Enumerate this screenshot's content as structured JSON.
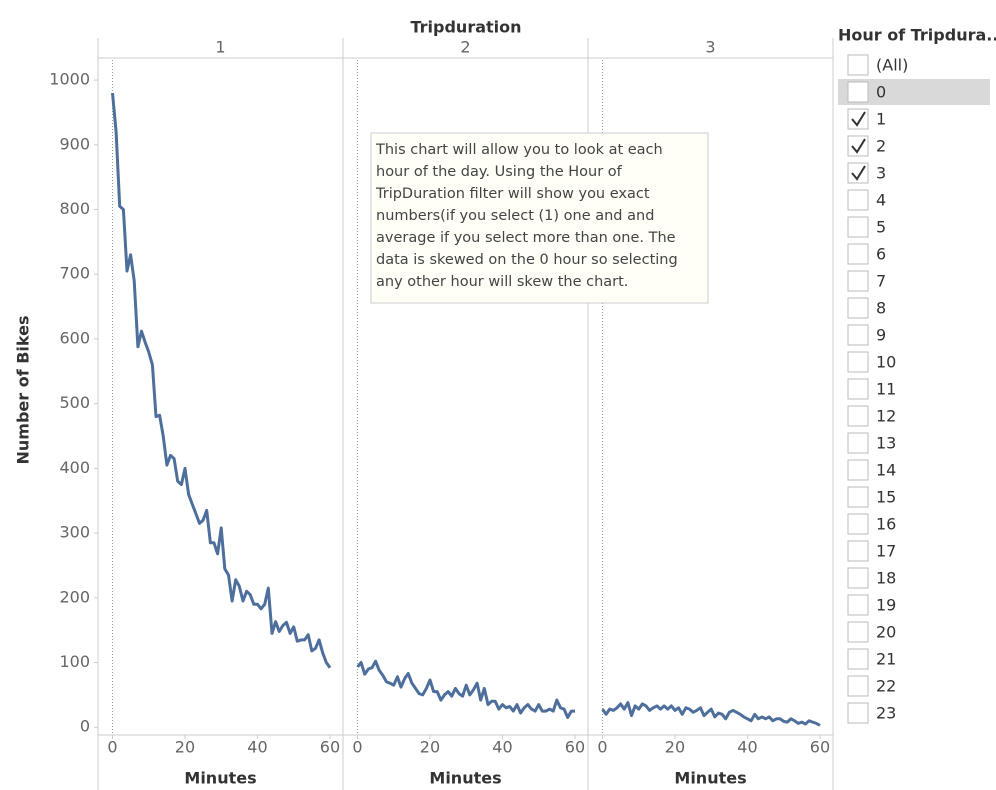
{
  "title": "Tripduration",
  "yaxis": {
    "label": "Number of Bikes",
    "ylim": [
      -12,
      1031
    ],
    "yticks": [
      0,
      100,
      200,
      300,
      400,
      500,
      600,
      700,
      800,
      900,
      1000
    ]
  },
  "chart_data": [
    {
      "type": "line",
      "title": "1",
      "xlabel": "Minutes",
      "color": "#4e6f9c",
      "xlim": [
        -4,
        63.6
      ],
      "xticks": [
        0,
        20,
        40,
        60
      ],
      "x": [
        0,
        1,
        2,
        3,
        4,
        5,
        6,
        7,
        8,
        9,
        10,
        11,
        12,
        13,
        14,
        15,
        16,
        17,
        18,
        19,
        20,
        21,
        22,
        23,
        24,
        25,
        26,
        27,
        28,
        29,
        30,
        31,
        32,
        33,
        34,
        35,
        36,
        37,
        38,
        39,
        40,
        41,
        42,
        43,
        44,
        45,
        46,
        47,
        48,
        49,
        50,
        51,
        52,
        53,
        54,
        55,
        56,
        57,
        58,
        59,
        60
      ],
      "values": [
        980,
        920,
        805,
        800,
        705,
        730,
        690,
        588,
        612,
        595,
        580,
        560,
        480,
        482,
        450,
        405,
        420,
        415,
        380,
        375,
        400,
        360,
        345,
        330,
        315,
        320,
        335,
        285,
        285,
        268,
        308,
        245,
        235,
        195,
        228,
        218,
        195,
        210,
        205,
        190,
        190,
        183,
        190,
        215,
        145,
        163,
        148,
        157,
        162,
        145,
        155,
        133,
        135,
        135,
        143,
        118,
        122,
        135,
        115,
        100,
        92
      ]
    },
    {
      "type": "line",
      "title": "2",
      "xlabel": "Minutes",
      "color": "#4e6f9c",
      "xlim": [
        -4,
        63.6
      ],
      "xticks": [
        0,
        20,
        40,
        60
      ],
      "x": [
        0,
        1,
        2,
        3,
        4,
        5,
        6,
        7,
        8,
        9,
        10,
        11,
        12,
        13,
        14,
        15,
        16,
        17,
        18,
        19,
        20,
        21,
        22,
        23,
        24,
        25,
        26,
        27,
        28,
        29,
        30,
        31,
        32,
        33,
        34,
        35,
        36,
        37,
        38,
        39,
        40,
        41,
        42,
        43,
        44,
        45,
        46,
        47,
        48,
        49,
        50,
        51,
        52,
        53,
        54,
        55,
        56,
        57,
        58,
        59,
        60
      ],
      "values": [
        93,
        100,
        82,
        90,
        92,
        102,
        88,
        80,
        70,
        68,
        65,
        78,
        62,
        75,
        83,
        68,
        60,
        52,
        50,
        60,
        73,
        55,
        55,
        42,
        50,
        55,
        48,
        60,
        52,
        48,
        65,
        50,
        58,
        68,
        42,
        60,
        35,
        40,
        40,
        28,
        35,
        30,
        32,
        25,
        35,
        22,
        30,
        35,
        28,
        25,
        35,
        25,
        25,
        28,
        25,
        42,
        30,
        28,
        15,
        25,
        25
      ]
    },
    {
      "type": "line",
      "title": "3",
      "xlabel": "Minutes",
      "color": "#4e6f9c",
      "xlim": [
        -4,
        63.6
      ],
      "xticks": [
        0,
        20,
        40,
        60
      ],
      "x": [
        0,
        1,
        2,
        3,
        4,
        5,
        6,
        7,
        8,
        9,
        10,
        11,
        12,
        13,
        14,
        15,
        16,
        17,
        18,
        19,
        20,
        21,
        22,
        23,
        24,
        25,
        26,
        27,
        28,
        29,
        30,
        31,
        32,
        33,
        34,
        35,
        36,
        37,
        38,
        39,
        40,
        41,
        42,
        43,
        44,
        45,
        46,
        47,
        48,
        49,
        50,
        51,
        52,
        53,
        54,
        55,
        56,
        57,
        58,
        59,
        60
      ],
      "values": [
        28,
        20,
        28,
        26,
        30,
        36,
        28,
        38,
        18,
        33,
        28,
        36,
        33,
        26,
        30,
        33,
        28,
        33,
        28,
        33,
        26,
        30,
        20,
        30,
        28,
        23,
        26,
        30,
        18,
        23,
        28,
        16,
        22,
        20,
        13,
        23,
        26,
        23,
        20,
        16,
        13,
        10,
        20,
        13,
        16,
        13,
        16,
        10,
        13,
        13,
        9,
        8,
        13,
        10,
        6,
        8,
        5,
        10,
        8,
        6,
        3
      ]
    }
  ],
  "annotation": [
    "This chart will allow you to look at each",
    "hour of the day. Using the Hour of",
    "TripDuration filter will show you exact",
    "numbers(if you select (1) one and and",
    "average if you select more than one. The",
    "data is skewed on the  0 hour so selecting",
    "any other hour will skew the chart."
  ],
  "filter": {
    "title": "Hour of Tripdura..",
    "items": [
      {
        "label": "(All)",
        "checked": false
      },
      {
        "label": "0",
        "checked": false,
        "highlighted": true
      },
      {
        "label": "1",
        "checked": true
      },
      {
        "label": "2",
        "checked": true
      },
      {
        "label": "3",
        "checked": true
      },
      {
        "label": "4",
        "checked": false
      },
      {
        "label": "5",
        "checked": false
      },
      {
        "label": "6",
        "checked": false
      },
      {
        "label": "7",
        "checked": false
      },
      {
        "label": "8",
        "checked": false
      },
      {
        "label": "9",
        "checked": false
      },
      {
        "label": "10",
        "checked": false
      },
      {
        "label": "11",
        "checked": false
      },
      {
        "label": "12",
        "checked": false
      },
      {
        "label": "13",
        "checked": false
      },
      {
        "label": "14",
        "checked": false
      },
      {
        "label": "15",
        "checked": false
      },
      {
        "label": "16",
        "checked": false
      },
      {
        "label": "17",
        "checked": false
      },
      {
        "label": "18",
        "checked": false
      },
      {
        "label": "19",
        "checked": false
      },
      {
        "label": "20",
        "checked": false
      },
      {
        "label": "21",
        "checked": false
      },
      {
        "label": "22",
        "checked": false
      },
      {
        "label": "23",
        "checked": false
      }
    ]
  }
}
